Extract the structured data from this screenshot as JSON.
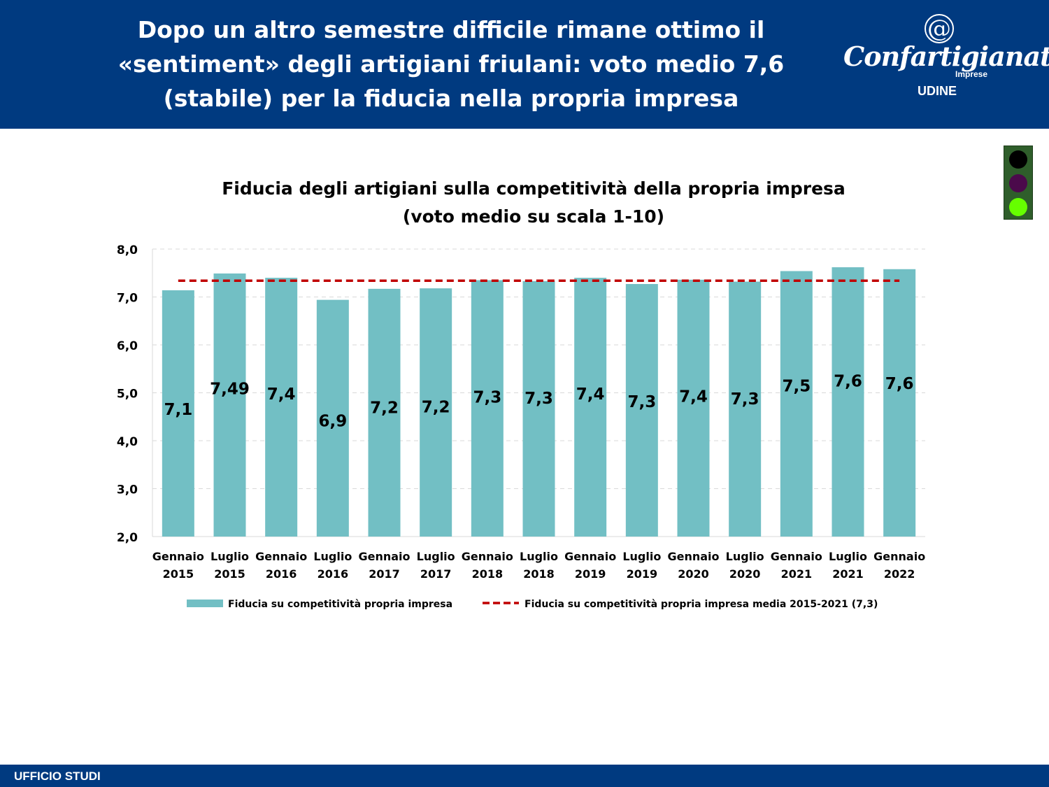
{
  "header": {
    "title_lines": [
      "Dopo un altro semestre difficile rimane ottimo il",
      "«sentiment» degli artigiani friulani: voto medio 7,6",
      "(stabile) per la fiducia nella propria impresa"
    ],
    "logo": {
      "symbol": "@",
      "name": "Confartigianato",
      "sub": "Imprese",
      "city": "UDINE"
    }
  },
  "traffic_light": {
    "lamps": [
      "#000000",
      "#4b0a4b",
      "#66ff00"
    ]
  },
  "footer": {
    "label": "UFFICIO STUDI"
  },
  "chart_data": {
    "type": "bar",
    "title": "Fiducia degli artigiani sulla competitività della propria impresa",
    "subtitle": "(voto medio su scala 1-10)",
    "categories": [
      [
        "Gennaio",
        "2015"
      ],
      [
        "Luglio",
        "2015"
      ],
      [
        "Gennaio",
        "2016"
      ],
      [
        "Luglio",
        "2016"
      ],
      [
        "Gennaio",
        "2017"
      ],
      [
        "Luglio",
        "2017"
      ],
      [
        "Gennaio",
        "2018"
      ],
      [
        "Luglio",
        "2018"
      ],
      [
        "Gennaio",
        "2019"
      ],
      [
        "Luglio",
        "2019"
      ],
      [
        "Gennaio",
        "2020"
      ],
      [
        "Luglio",
        "2020"
      ],
      [
        "Gennaio",
        "2021"
      ],
      [
        "Luglio",
        "2021"
      ],
      [
        "Gennaio",
        "2022"
      ]
    ],
    "series": [
      {
        "name": "Fiducia su competitività propria impresa",
        "type": "bar",
        "color": "#72bfc4",
        "values": [
          7.14,
          7.49,
          7.4,
          6.94,
          7.17,
          7.18,
          7.35,
          7.33,
          7.4,
          7.27,
          7.36,
          7.32,
          7.54,
          7.62,
          7.58
        ],
        "labels": [
          "7,1",
          "7,49",
          "7,4",
          "6,9",
          "7,2",
          "7,2",
          "7,3",
          "7,3",
          "7,4",
          "7,3",
          "7,4",
          "7,3",
          "7,5",
          "7,6",
          "7,6"
        ]
      },
      {
        "name": "Fiducia su competitività propria impresa media 2015-2021 (7,3)",
        "type": "line",
        "style": "dashed",
        "color": "#c00000",
        "value": 7.34
      }
    ],
    "ylim": [
      2.0,
      8.0
    ],
    "yticks": [
      2.0,
      3.0,
      4.0,
      5.0,
      6.0,
      7.0,
      8.0
    ],
    "ytick_labels": [
      "2,0",
      "3,0",
      "4,0",
      "5,0",
      "6,0",
      "7,0",
      "8,0"
    ],
    "grid": "horizontal-dashed",
    "legend": "bottom"
  }
}
